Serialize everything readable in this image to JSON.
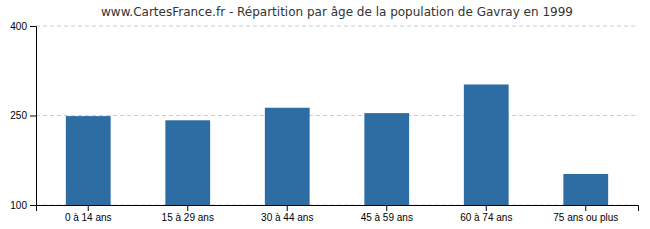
{
  "chart_data": {
    "type": "bar",
    "title": "www.CartesFrance.fr - Répartition par âge de la population de Gavray en 1999",
    "categories": [
      "0 à 14 ans",
      "15 à 29 ans",
      "30 à 44 ans",
      "45 à 59 ans",
      "60 à 74 ans",
      "75 ans ou plus"
    ],
    "values": [
      249,
      242,
      263,
      254,
      302,
      152
    ],
    "color": "#2e6da4",
    "ylim": [
      100,
      400
    ],
    "yticks": [
      100,
      250,
      400
    ],
    "grid": true
  }
}
